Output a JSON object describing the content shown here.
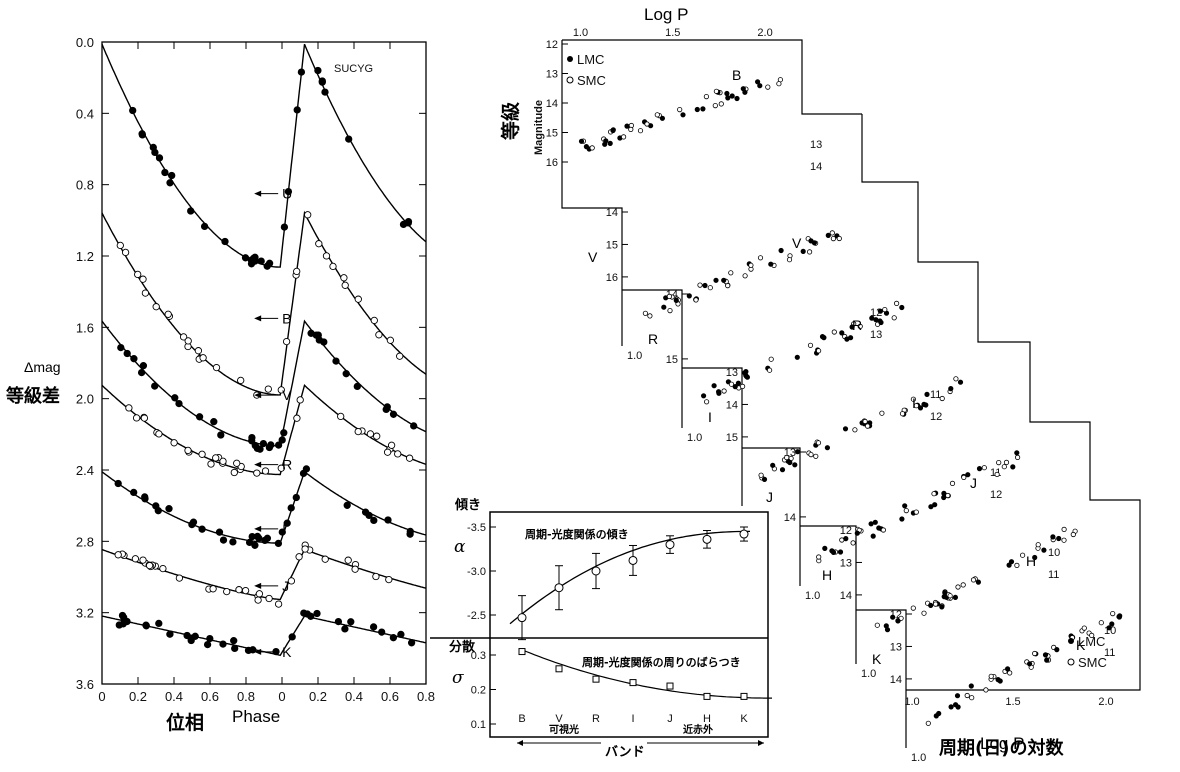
{
  "chart_data": [
    {
      "type": "line",
      "id": "light_curves",
      "star_label": "SUCYG",
      "xlabel_jp": "位相",
      "xlabel_en": "Phase",
      "ylabel_en": "Δmag",
      "ylabel_jp": "等級差",
      "xlim": [
        0.0,
        0.8
      ],
      "x_segments": [
        [
          0.0,
          0.8
        ],
        [
          -1.0,
          -0.2
        ]
      ],
      "x_tick_labels": [
        "0",
        "0.2",
        "0.4",
        "0.6",
        "0.8",
        "0",
        "0.2",
        "0.4",
        "0.6",
        "0.8"
      ],
      "ylim": [
        0.0,
        3.6
      ],
      "y_ticks": [
        "0.0",
        "0.4",
        "0.8",
        "1.2",
        "1.6",
        "2.0",
        "2.4",
        "2.8",
        "3.2",
        "3.6"
      ],
      "series": [
        {
          "name": "U",
          "filled": true,
          "mean": 0.7,
          "amp": 1.25,
          "sharp": 1.9,
          "label_phase": 0.86,
          "label_mag": 0.85
        },
        {
          "name": "B",
          "filled": false,
          "mean": 1.52,
          "amp": 1.02,
          "sharp": 1.9,
          "label_phase": 0.86,
          "label_mag": 1.55
        },
        {
          "name": "V",
          "filled": true,
          "mean": 1.95,
          "amp": 0.7,
          "sharp": 1.9,
          "label_phase": 0.86,
          "label_mag": 1.98
        },
        {
          "name": "R",
          "filled": false,
          "mean": 2.2,
          "amp": 0.5,
          "sharp": 1.9,
          "label_phase": 0.86,
          "label_mag": 2.37
        },
        {
          "name": "I",
          "filled": true,
          "mean": 2.63,
          "amp": 0.4,
          "sharp": 1.9,
          "label_phase": 0.86,
          "label_mag": 2.73
        },
        {
          "name": "J",
          "filled": false,
          "mean": 3.0,
          "amp": 0.28,
          "sharp": 1.3,
          "label_phase": 0.86,
          "label_mag": 3.05
        },
        {
          "name": "K",
          "filled": true,
          "mean": 3.34,
          "amp": 0.22,
          "sharp": 1.0,
          "label_phase": 0.86,
          "label_mag": 3.42
        }
      ]
    },
    {
      "type": "scatter",
      "id": "period_luminosity",
      "xlabel": "Log P",
      "ylabel_en": "Magnitude",
      "ylabel_jp": "等級",
      "xlabel_jp": "周期(日)の対数",
      "legend": [
        {
          "name": "LMC",
          "marker": "filled"
        },
        {
          "name": "SMC",
          "marker": "open"
        }
      ],
      "log_p_ticks": [
        "1.0",
        "1.5",
        "2.0"
      ],
      "panels": [
        {
          "band": "B",
          "mag_ticks": [
            "12",
            "13",
            "14",
            "15",
            "16"
          ],
          "right_ticks": [
            "13",
            "14"
          ],
          "m_at_1": 15.8,
          "slope": -2.4
        },
        {
          "band": "V",
          "mag_ticks": [
            "14",
            "15",
            "16"
          ],
          "right_ticks": [
            "12",
            "13"
          ],
          "m_at_1": 15.3,
          "slope": -2.8
        },
        {
          "band": "R",
          "mag_ticks": [
            "14",
            "15"
          ],
          "right_ticks": [
            "11",
            "12"
          ],
          "m_at_1": 14.9,
          "slope": -2.95
        },
        {
          "band": "I",
          "mag_ticks": [
            "13",
            "14",
            "15"
          ],
          "right_ticks": [
            "11",
            "12"
          ],
          "m_at_1": 14.5,
          "slope": -3.1
        },
        {
          "band": "J",
          "mag_ticks": [
            "13",
            "14"
          ],
          "right_ticks": [
            "10",
            "11"
          ],
          "m_at_1": 14.1,
          "slope": -3.3
        },
        {
          "band": "H",
          "mag_ticks": [
            "12",
            "13",
            "14"
          ],
          "right_ticks": [
            "10",
            "11"
          ],
          "m_at_1": 13.8,
          "slope": -3.4
        },
        {
          "band": "K",
          "mag_ticks": [
            "12",
            "13",
            "14"
          ],
          "right_ticks": [
            "10",
            "11",
            "12",
            "13"
          ],
          "m_at_1": 13.7,
          "slope": -3.45
        }
      ]
    },
    {
      "type": "line",
      "id": "slope_and_scatter",
      "categories": [
        "B",
        "V",
        "R",
        "I",
        "J",
        "H",
        "K"
      ],
      "slope": {
        "label_jp": "傾き",
        "symbol": "α",
        "title": "周期-光度関係の傾き",
        "values": [
          -2.47,
          -2.81,
          -3.0,
          -3.12,
          -3.3,
          -3.36,
          -3.42
        ],
        "errors": [
          0.25,
          0.25,
          0.2,
          0.17,
          0.1,
          0.1,
          0.08
        ],
        "y_ticks": [
          "-3.5",
          "-3.0",
          "-2.5"
        ],
        "ylim": [
          -2.35,
          -3.6
        ]
      },
      "scatter": {
        "label_jp": "分散",
        "symbol": "σ",
        "title": "周期-光度関係の周りのばらつき",
        "values": [
          0.31,
          0.26,
          0.23,
          0.22,
          0.21,
          0.18,
          0.18
        ],
        "y_ticks": [
          "0.3",
          "0.2",
          "0.1"
        ],
        "ylim": [
          0.1,
          0.34
        ]
      },
      "xlabel_jp": "バンド",
      "visible_label": "可視光",
      "nir_label": "近赤外"
    }
  ]
}
